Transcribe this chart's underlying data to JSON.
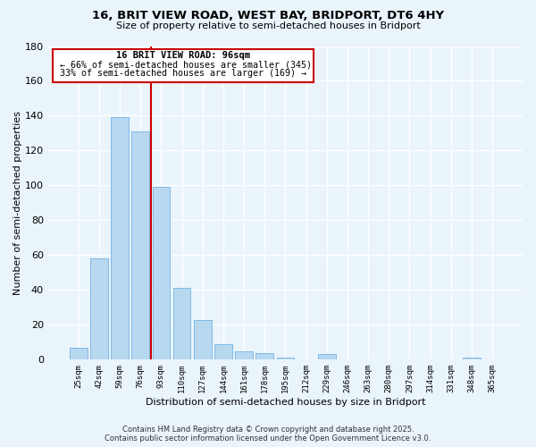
{
  "title_line1": "16, BRIT VIEW ROAD, WEST BAY, BRIDPORT, DT6 4HY",
  "title_line2": "Size of property relative to semi-detached houses in Bridport",
  "xlabel": "Distribution of semi-detached houses by size in Bridport",
  "ylabel": "Number of semi-detached properties",
  "categories": [
    "25sqm",
    "42sqm",
    "59sqm",
    "76sqm",
    "93sqm",
    "110sqm",
    "127sqm",
    "144sqm",
    "161sqm",
    "178sqm",
    "195sqm",
    "212sqm",
    "229sqm",
    "246sqm",
    "263sqm",
    "280sqm",
    "297sqm",
    "314sqm",
    "331sqm",
    "348sqm",
    "365sqm"
  ],
  "values": [
    7,
    58,
    139,
    131,
    99,
    41,
    23,
    9,
    5,
    4,
    1,
    0,
    3,
    0,
    0,
    0,
    0,
    0,
    0,
    1,
    0
  ],
  "bar_color": "#b8d8f0",
  "bar_edge_color": "#7fb8e8",
  "vline_color": "#cc0000",
  "vline_x": 3.5,
  "box_text_line1": "16 BRIT VIEW ROAD: 96sqm",
  "box_text_line2": "← 66% of semi-detached houses are smaller (345)",
  "box_text_line3": "33% of semi-detached houses are larger (169) →",
  "box_color": "#ffffff",
  "box_edge_color": "#cc0000",
  "ylim": [
    0,
    180
  ],
  "yticks": [
    0,
    20,
    40,
    60,
    80,
    100,
    120,
    140,
    160,
    180
  ],
  "footer_line1": "Contains HM Land Registry data © Crown copyright and database right 2025.",
  "footer_line2": "Contains public sector information licensed under the Open Government Licence v3.0.",
  "bg_color": "#eaf4fb",
  "grid_color": "#ffffff"
}
